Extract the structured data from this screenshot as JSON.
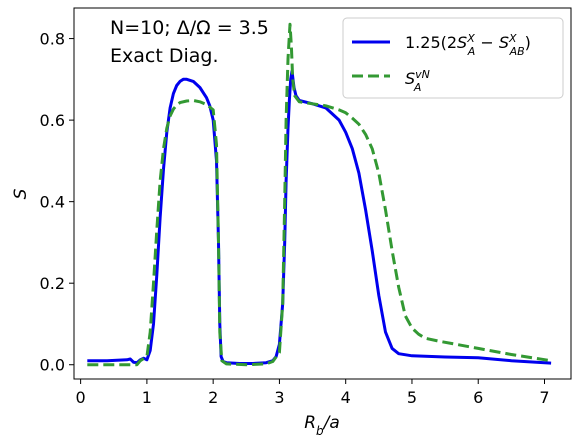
{
  "chart_data": {
    "type": "line",
    "xlabel": "R_b/a",
    "ylabel": "S",
    "xlim": [
      -0.1,
      7.4
    ],
    "ylim": [
      -0.035,
      0.875
    ],
    "x_ticks": [
      0,
      1,
      2,
      3,
      4,
      5,
      6,
      7
    ],
    "y_ticks": [
      0.0,
      0.2,
      0.4,
      0.6,
      0.8
    ],
    "grid": false,
    "legend_position": "top-right",
    "annotations": [
      "N=10; Δ/Ω = 3.5",
      "Exact Diag."
    ],
    "series": [
      {
        "name": "1.25(2S_A^X − S_AB^X)",
        "color": "#0000ee",
        "style": "solid",
        "points": [
          [
            0.1,
            0.01
          ],
          [
            0.4,
            0.01
          ],
          [
            0.7,
            0.012
          ],
          [
            0.75,
            0.014
          ],
          [
            0.8,
            0.006
          ],
          [
            0.85,
            0.005
          ],
          [
            0.9,
            0.012
          ],
          [
            0.95,
            0.016
          ],
          [
            1.0,
            0.012
          ],
          [
            1.05,
            0.035
          ],
          [
            1.1,
            0.1
          ],
          [
            1.15,
            0.22
          ],
          [
            1.2,
            0.36
          ],
          [
            1.25,
            0.48
          ],
          [
            1.3,
            0.57
          ],
          [
            1.35,
            0.63
          ],
          [
            1.4,
            0.665
          ],
          [
            1.45,
            0.685
          ],
          [
            1.5,
            0.695
          ],
          [
            1.55,
            0.7
          ],
          [
            1.6,
            0.7
          ],
          [
            1.7,
            0.695
          ],
          [
            1.8,
            0.68
          ],
          [
            1.9,
            0.655
          ],
          [
            1.95,
            0.635
          ],
          [
            2.0,
            0.6
          ],
          [
            2.05,
            0.5
          ],
          [
            2.08,
            0.3
          ],
          [
            2.1,
            0.1
          ],
          [
            2.12,
            0.02
          ],
          [
            2.15,
            0.008
          ],
          [
            2.2,
            0.005
          ],
          [
            2.4,
            0.003
          ],
          [
            2.6,
            0.003
          ],
          [
            2.8,
            0.005
          ],
          [
            2.9,
            0.01
          ],
          [
            2.95,
            0.02
          ],
          [
            3.0,
            0.05
          ],
          [
            3.05,
            0.15
          ],
          [
            3.08,
            0.3
          ],
          [
            3.1,
            0.45
          ],
          [
            3.13,
            0.58
          ],
          [
            3.15,
            0.65
          ],
          [
            3.17,
            0.7
          ],
          [
            3.19,
            0.72
          ],
          [
            3.22,
            0.68
          ],
          [
            3.25,
            0.66
          ],
          [
            3.3,
            0.648
          ],
          [
            3.5,
            0.64
          ],
          [
            3.7,
            0.63
          ],
          [
            3.9,
            0.6
          ],
          [
            4.0,
            0.57
          ],
          [
            4.1,
            0.53
          ],
          [
            4.2,
            0.47
          ],
          [
            4.3,
            0.38
          ],
          [
            4.4,
            0.28
          ],
          [
            4.5,
            0.17
          ],
          [
            4.6,
            0.08
          ],
          [
            4.7,
            0.04
          ],
          [
            4.8,
            0.027
          ],
          [
            5.0,
            0.022
          ],
          [
            5.5,
            0.019
          ],
          [
            6.0,
            0.017
          ],
          [
            6.5,
            0.01
          ],
          [
            7.1,
            0.004
          ]
        ]
      },
      {
        "name": "S_A^vN",
        "color": "#339933",
        "style": "dashed",
        "points": [
          [
            0.1,
            0.0
          ],
          [
            0.5,
            0.0
          ],
          [
            0.8,
            0.0
          ],
          [
            0.85,
            0.0
          ],
          [
            0.9,
            0.01
          ],
          [
            0.95,
            0.015
          ],
          [
            1.0,
            0.02
          ],
          [
            1.05,
            0.08
          ],
          [
            1.1,
            0.2
          ],
          [
            1.15,
            0.33
          ],
          [
            1.2,
            0.45
          ],
          [
            1.25,
            0.53
          ],
          [
            1.3,
            0.58
          ],
          [
            1.35,
            0.61
          ],
          [
            1.4,
            0.627
          ],
          [
            1.45,
            0.637
          ],
          [
            1.5,
            0.643
          ],
          [
            1.6,
            0.647
          ],
          [
            1.7,
            0.648
          ],
          [
            1.8,
            0.645
          ],
          [
            1.9,
            0.638
          ],
          [
            1.95,
            0.632
          ],
          [
            2.0,
            0.625
          ],
          [
            2.05,
            0.54
          ],
          [
            2.08,
            0.3
          ],
          [
            2.1,
            0.08
          ],
          [
            2.13,
            0.01
          ],
          [
            2.2,
            0.002
          ],
          [
            2.5,
            0.0
          ],
          [
            2.8,
            0.002
          ],
          [
            2.9,
            0.008
          ],
          [
            3.0,
            0.03
          ],
          [
            3.05,
            0.15
          ],
          [
            3.08,
            0.4
          ],
          [
            3.1,
            0.6
          ],
          [
            3.13,
            0.75
          ],
          [
            3.15,
            0.81
          ],
          [
            3.16,
            0.835
          ],
          [
            3.18,
            0.78
          ],
          [
            3.2,
            0.7
          ],
          [
            3.23,
            0.66
          ],
          [
            3.3,
            0.645
          ],
          [
            3.5,
            0.64
          ],
          [
            3.7,
            0.635
          ],
          [
            3.9,
            0.625
          ],
          [
            4.0,
            0.618
          ],
          [
            4.1,
            0.605
          ],
          [
            4.2,
            0.59
          ],
          [
            4.3,
            0.565
          ],
          [
            4.4,
            0.53
          ],
          [
            4.5,
            0.47
          ],
          [
            4.6,
            0.38
          ],
          [
            4.7,
            0.28
          ],
          [
            4.8,
            0.19
          ],
          [
            4.9,
            0.12
          ],
          [
            5.0,
            0.09
          ],
          [
            5.1,
            0.075
          ],
          [
            5.2,
            0.065
          ],
          [
            5.4,
            0.058
          ],
          [
            5.6,
            0.052
          ],
          [
            6.0,
            0.04
          ],
          [
            6.5,
            0.025
          ],
          [
            7.1,
            0.01
          ]
        ]
      }
    ]
  }
}
